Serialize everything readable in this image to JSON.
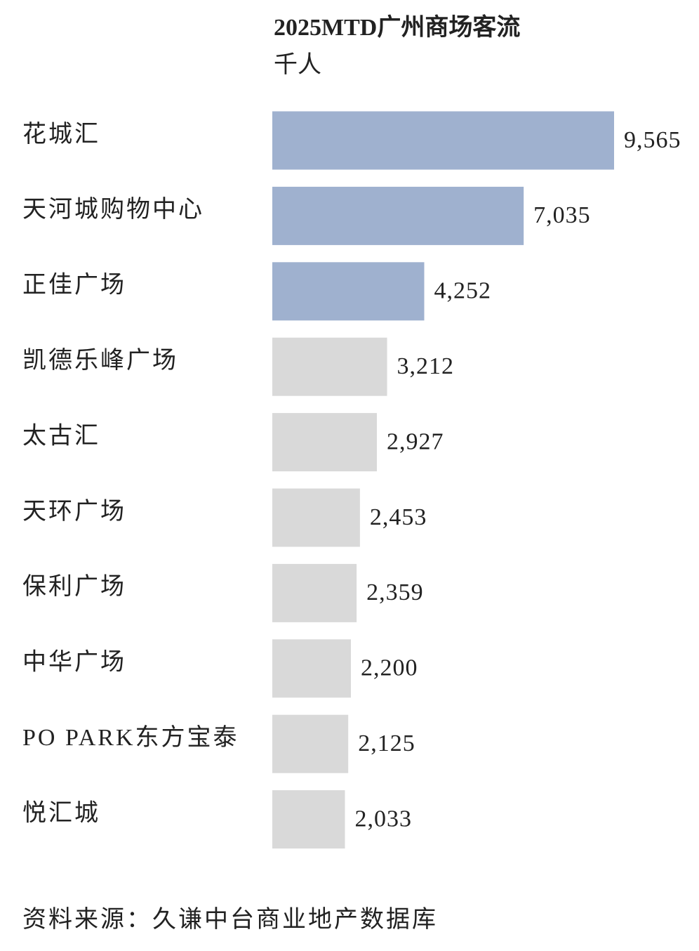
{
  "chart_data": {
    "type": "bar",
    "orientation": "horizontal",
    "title": "2025MTD广州商场客流",
    "subtitle": "千人",
    "categories": [
      "花城汇",
      "天河城购物中心",
      "正佳广场",
      "凯德乐峰广场",
      "太古汇",
      "天环广场",
      "保利广场",
      "中华广场",
      "PO PARK东方宝泰",
      "悦汇城"
    ],
    "values": [
      9565,
      7035,
      4252,
      3212,
      2927,
      2453,
      2359,
      2200,
      2125,
      2033
    ],
    "value_labels": [
      "9,565",
      "7,035",
      "4,252",
      "3,212",
      "2,927",
      "2,453",
      "2,359",
      "2,200",
      "2,125",
      "2,033"
    ],
    "colors": [
      "#9fb1cf",
      "#9fb1cf",
      "#9fb1cf",
      "#d9d9d9",
      "#d9d9d9",
      "#d9d9d9",
      "#d9d9d9",
      "#d9d9d9",
      "#d9d9d9",
      "#d9d9d9"
    ],
    "source": "资料来源：久谦中台商业地产数据库"
  }
}
